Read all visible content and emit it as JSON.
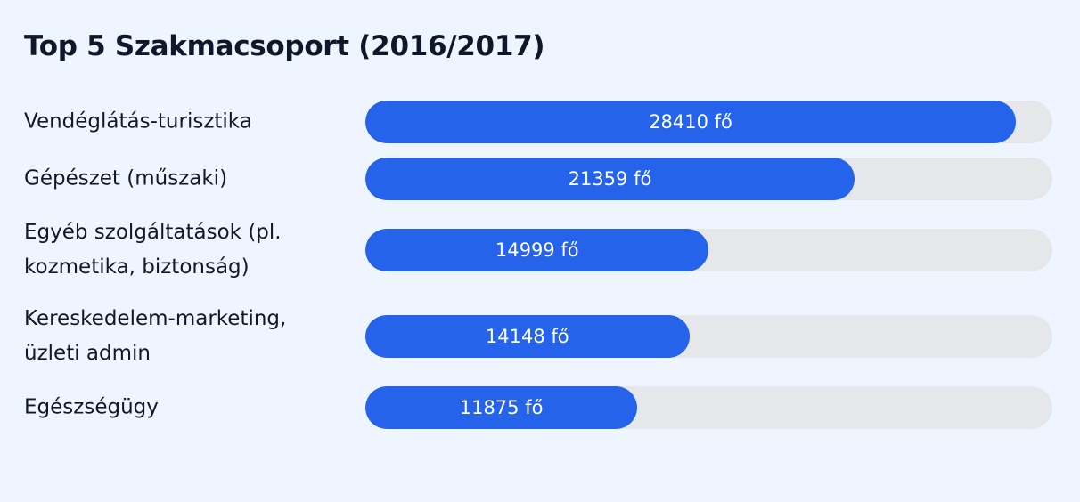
{
  "chart_data": {
    "type": "bar",
    "orientation": "horizontal",
    "title": "Top 5 Szakmacsoport (2016/2017)",
    "unit": "fő",
    "xlim": [
      0,
      30000
    ],
    "categories": [
      "Vendéglátás-turisztika",
      "Gépészet (műszaki)",
      "Egyéb szolgáltatások (pl. kozmetika, biztonság)",
      "Kereskedelem-marketing, üzleti admin",
      "Egészségügy"
    ],
    "values": [
      28410,
      21359,
      14999,
      14148,
      11875
    ],
    "value_labels": [
      "28410 fő",
      "21359 fő",
      "14999 fő",
      "14148 fő",
      "11875 fő"
    ],
    "bar_color": "#2563eb",
    "track_color": "#e5e7eb",
    "background_color": "#eff5ff"
  }
}
